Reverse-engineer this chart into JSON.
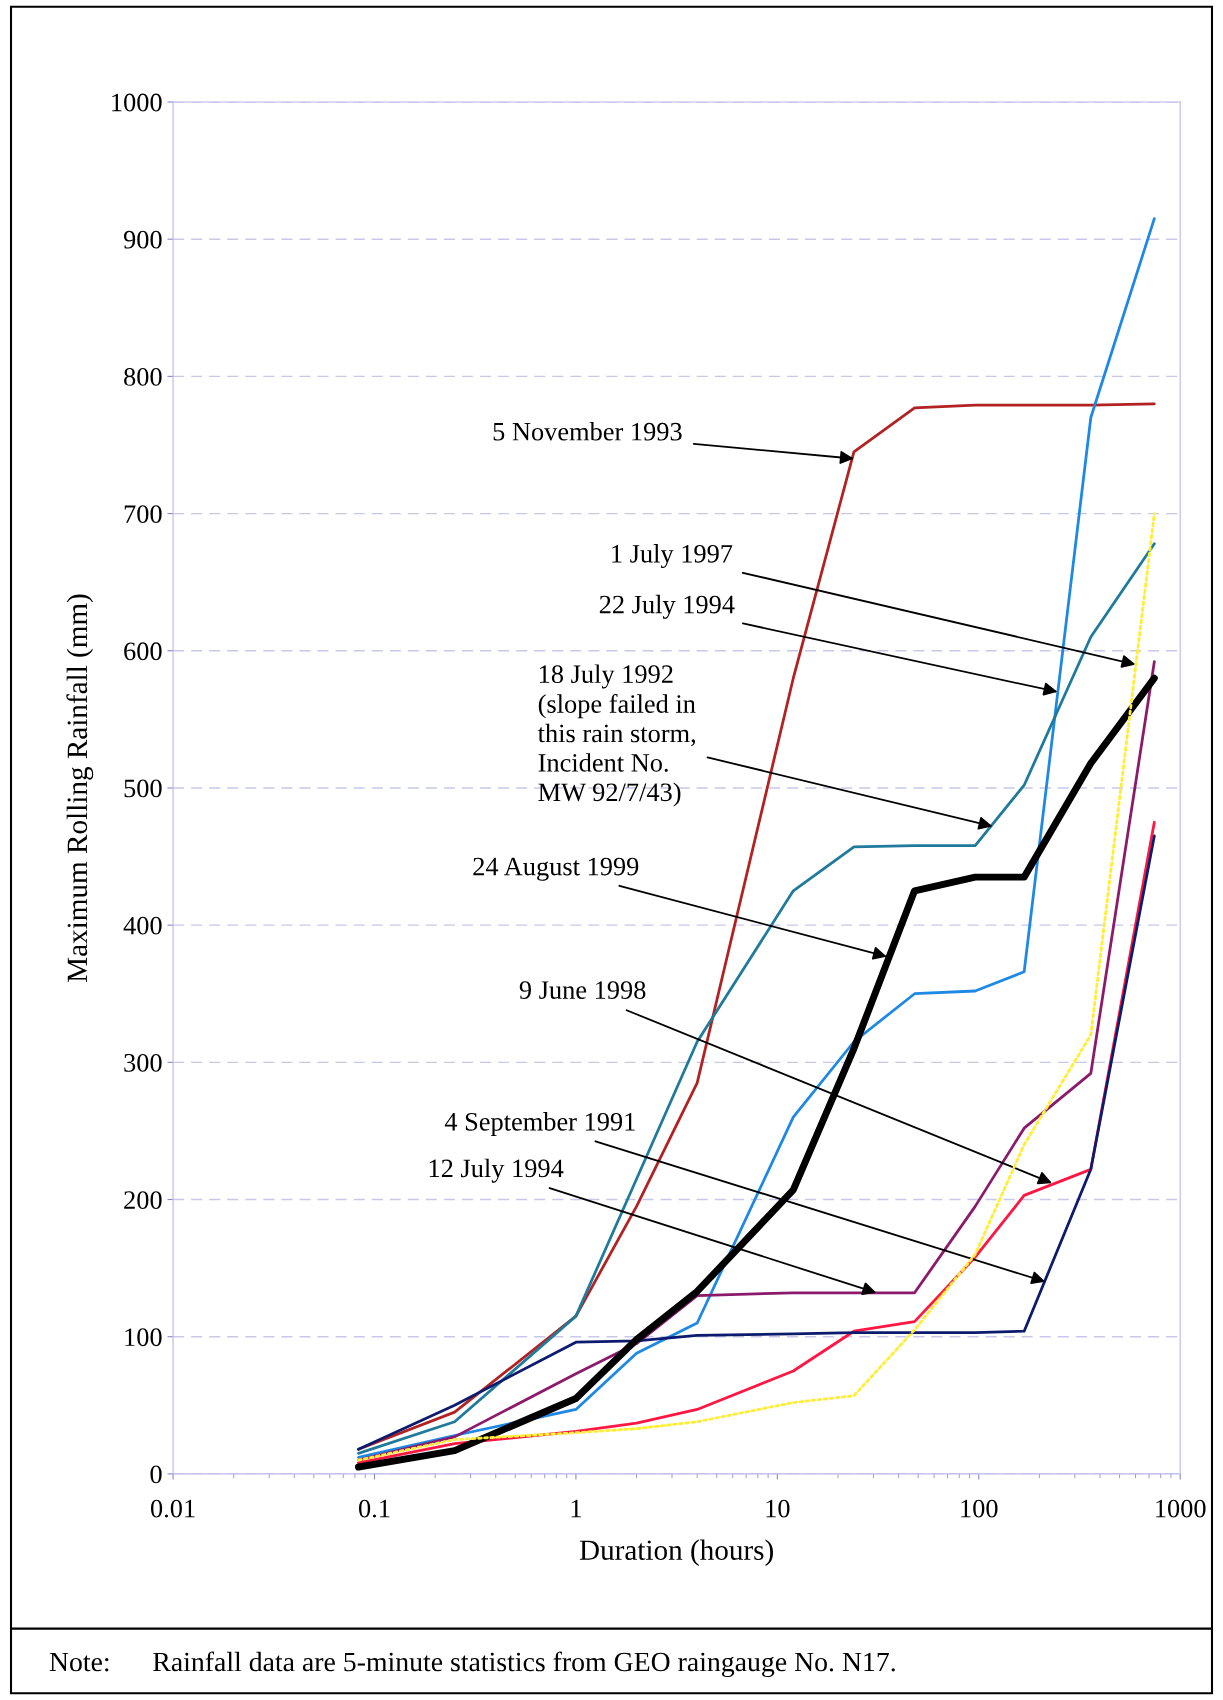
{
  "chart_data": {
    "type": "line",
    "xlabel": "Duration (hours)",
    "ylabel": "Maximum Rolling Rainfall (mm)",
    "log": "x",
    "xlim": [
      0.01,
      1000
    ],
    "xticks": [
      0.01,
      0.1,
      1,
      10,
      100,
      1000
    ],
    "ylim": [
      0,
      1000
    ],
    "yticks": [
      0,
      100,
      200,
      300,
      400,
      500,
      600,
      700,
      800,
      900,
      1000
    ],
    "grid": "y",
    "marker": "none",
    "line_style": "solid",
    "x": [
      0.0833,
      0.25,
      1,
      2,
      4,
      12,
      24,
      48,
      96,
      168,
      360,
      744
    ],
    "series": [
      {
        "color": "#b22222",
        "values": [
          18,
          45,
          115,
          195,
          285,
          580,
          745,
          777,
          779,
          779,
          779,
          780
        ]
      },
      {
        "color": "#1e88e5",
        "values": [
          12,
          28,
          47,
          88,
          110,
          260,
          315,
          350,
          352,
          366,
          770,
          915
        ]
      },
      {
        "color": "#1f7a9c",
        "values": [
          15,
          38,
          115,
          215,
          315,
          425,
          457,
          458,
          458,
          502,
          610,
          678
        ]
      },
      {
        "color": "#ffee33",
        "line_style": "dotted",
        "values": [
          10,
          25,
          30,
          33,
          38,
          52,
          57,
          105,
          160,
          240,
          320,
          700
        ]
      },
      {
        "color": "#8b1a6b",
        "values": [
          10,
          27,
          73,
          95,
          130,
          132,
          132,
          132,
          195,
          252,
          292,
          592
        ]
      },
      {
        "color": "#ff1744",
        "values": [
          8,
          22,
          31,
          37,
          47,
          75,
          104,
          111,
          158,
          203,
          222,
          475
        ]
      },
      {
        "color": "#0d1b6e",
        "values": [
          18,
          50,
          96,
          97,
          101,
          102,
          103,
          103,
          103,
          104,
          222,
          465
        ]
      },
      {
        "color": "#000000",
        "values": [
          5,
          17,
          55,
          98,
          133,
          207,
          310,
          425,
          435,
          435,
          518,
          580
        ]
      }
    ],
    "annotations": [
      {
        "text": "5 November 1993",
        "x": 24,
        "y": 740
      },
      {
        "text": "1 July 1997",
        "x": 600,
        "y": 590
      },
      {
        "text": "22 July 1994",
        "x": 246,
        "y": 570
      },
      {
        "text": "18 July 1992\n(slope failed in\nthis rain storm,\nIncident No.\nMW 92/7/43)",
        "x": 117,
        "y": 472
      },
      {
        "text": "24 August 1999",
        "x": 35,
        "y": 377
      },
      {
        "text": "9 June 1998",
        "x": 231,
        "y": 212
      },
      {
        "text": "4 September 1991",
        "x": 214,
        "y": 140
      },
      {
        "text": "12 July 1994",
        "x": 31,
        "y": 132
      },
      "Note:      Rainfall data are 5-minute statistics from GEO raingauge No. N17."
    ]
  }
}
